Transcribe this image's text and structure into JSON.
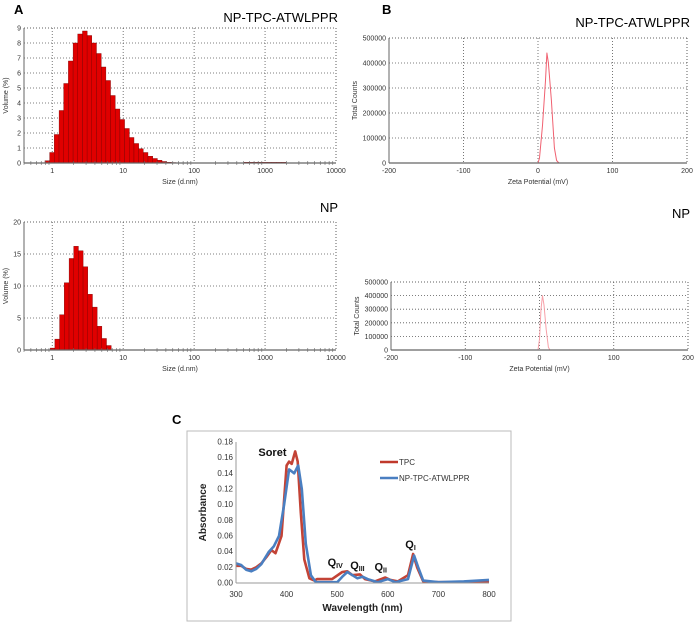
{
  "panel_letters": {
    "a": "A",
    "b": "B",
    "c": "C"
  },
  "chart_data": [
    {
      "id": "A-top",
      "type": "bar",
      "title": "NP-TPC-ATWLPPR",
      "xlabel": "Size (d.nm)",
      "ylabel": "Volume (%)",
      "xscale": "log",
      "xlim": [
        0.4,
        10000
      ],
      "ylim": [
        0,
        9
      ],
      "xticks": [
        "1",
        "10",
        "100",
        "1000",
        "10000"
      ],
      "xtick_values": [
        1,
        10,
        100,
        1000,
        10000
      ],
      "yticks": [
        0,
        1,
        2,
        3,
        4,
        5,
        6,
        7,
        8,
        9
      ],
      "grid": true,
      "color": "#e00000",
      "bin_factor": 1.164,
      "sizes": [
        0.79,
        0.92,
        1.07,
        1.25,
        1.45,
        1.69,
        1.97,
        2.29,
        2.67,
        3.1,
        3.61,
        4.21,
        4.9,
        5.7,
        6.63,
        7.72,
        8.99,
        10.5,
        12.2,
        14.2,
        16.5,
        19.2,
        22.4,
        26.1,
        30.3,
        35.3,
        41.1,
        47.8,
        500,
        582,
        678,
        789,
        918,
        1069,
        1244,
        1448,
        1686
      ],
      "values": [
        0.15,
        0.7,
        1.9,
        3.5,
        5.3,
        6.8,
        8.0,
        8.6,
        8.8,
        8.5,
        8.0,
        7.3,
        6.4,
        5.5,
        4.5,
        3.6,
        2.9,
        2.3,
        1.7,
        1.3,
        0.95,
        0.7,
        0.45,
        0.3,
        0.18,
        0.1,
        0.05,
        0.03,
        0.05,
        0.05,
        0.05,
        0.05,
        0.05,
        0.05,
        0.05,
        0.05,
        0.05
      ]
    },
    {
      "id": "A-bottom",
      "type": "bar",
      "title": "NP",
      "xlabel": "Size (d.nm)",
      "ylabel": "Volume (%)",
      "xscale": "log",
      "xlim": [
        0.4,
        10000
      ],
      "ylim": [
        0,
        20
      ],
      "xticks": [
        "1",
        "10",
        "100",
        "1000",
        "10000"
      ],
      "xtick_values": [
        1,
        10,
        100,
        1000,
        10000
      ],
      "yticks": [
        0,
        5,
        10,
        15,
        20
      ],
      "grid": true,
      "color": "#e00000",
      "bin_factor": 1.164,
      "sizes": [
        0.94,
        1.09,
        1.27,
        1.48,
        1.73,
        2.01,
        2.34,
        2.72,
        3.17,
        3.69,
        4.3,
        5.0,
        5.82
      ],
      "values": [
        0.3,
        1.7,
        5.5,
        10.5,
        14.3,
        16.2,
        15.5,
        13.0,
        8.7,
        6.7,
        3.7,
        1.8,
        0.7
      ]
    },
    {
      "id": "B-top",
      "type": "line",
      "title": "NP-TPC-ATWLPPR",
      "xlabel": "Zeta Potential (mV)",
      "ylabel": "Total Counts",
      "xlim": [
        -200,
        200
      ],
      "ylim": [
        0,
        500000
      ],
      "xticks": [
        "-200",
        "-100",
        "0",
        "100",
        "200"
      ],
      "xtick_values": [
        -200,
        -100,
        0,
        100,
        200
      ],
      "yticks": [
        0,
        100000,
        200000,
        300000,
        400000,
        500000
      ],
      "grid": true,
      "color": "#f06070",
      "x": [
        -200,
        0,
        2,
        6,
        10,
        12,
        14,
        18,
        22,
        25,
        28,
        200
      ],
      "y": [
        0,
        0,
        20000,
        150000,
        330000,
        440000,
        400000,
        250000,
        60000,
        10000,
        0,
        0
      ]
    },
    {
      "id": "B-bottom",
      "type": "line",
      "title": "NP",
      "xlabel": "Zeta Potential (mV)",
      "ylabel": "Total Counts",
      "xlim": [
        -200,
        200
      ],
      "ylim": [
        0,
        500000
      ],
      "xticks": [
        "-200",
        "-100",
        "0",
        "100",
        "200"
      ],
      "xtick_values": [
        -200,
        -100,
        0,
        100,
        200
      ],
      "yticks": [
        0,
        100000,
        200000,
        300000,
        400000,
        500000
      ],
      "grid": true,
      "color": "#f7a0a8",
      "x": [
        -200,
        -2,
        0,
        2,
        4,
        6,
        9,
        12,
        14,
        200
      ],
      "y": [
        0,
        0,
        80000,
        300000,
        400000,
        330000,
        150000,
        20000,
        0,
        0
      ]
    },
    {
      "id": "C",
      "type": "line",
      "xlabel": "Wavelength (nm)",
      "ylabel": "Absorbance",
      "xlim": [
        300,
        800
      ],
      "ylim": [
        0,
        0.18
      ],
      "xticks": [
        "300",
        "400",
        "500",
        "600",
        "700",
        "800"
      ],
      "xtick_values": [
        300,
        400,
        500,
        600,
        700,
        800
      ],
      "yticks": [
        "0.00",
        "0.02",
        "0.04",
        "0.06",
        "0.08",
        "0.10",
        "0.12",
        "0.14",
        "0.16",
        "0.18"
      ],
      "grid": false,
      "legend": "top-right",
      "series": [
        {
          "name": "TPC",
          "color": "#c0392b",
          "x": [
            300,
            310,
            320,
            330,
            340,
            350,
            360,
            370,
            378,
            390,
            400,
            405,
            410,
            417,
            422,
            428,
            435,
            445,
            455,
            460,
            490,
            510,
            520,
            530,
            545,
            555,
            575,
            595,
            605,
            620,
            640,
            650,
            658,
            670,
            700,
            800
          ],
          "y": [
            0.022,
            0.022,
            0.018,
            0.017,
            0.02,
            0.025,
            0.033,
            0.042,
            0.038,
            0.06,
            0.15,
            0.155,
            0.152,
            0.168,
            0.155,
            0.09,
            0.03,
            0.006,
            0.003,
            0.005,
            0.005,
            0.014,
            0.015,
            0.01,
            0.011,
            0.005,
            0.002,
            0.007,
            0.004,
            0.002,
            0.01,
            0.037,
            0.02,
            0.002,
            0.001,
            0.001
          ]
        },
        {
          "name": "NP-TPC-ATWLPPR",
          "color": "#4a7fc1",
          "x": [
            300,
            310,
            320,
            330,
            340,
            350,
            365,
            375,
            385,
            395,
            405,
            415,
            423,
            430,
            438,
            448,
            458,
            500,
            510,
            520,
            530,
            540,
            550,
            560,
            580,
            600,
            615,
            640,
            652,
            660,
            670,
            700,
            750,
            800
          ],
          "y": [
            0.025,
            0.023,
            0.017,
            0.015,
            0.018,
            0.024,
            0.04,
            0.047,
            0.06,
            0.1,
            0.145,
            0.14,
            0.15,
            0.12,
            0.05,
            0.01,
            0.001,
            0.001,
            0.008,
            0.014,
            0.01,
            0.006,
            0.008,
            0.005,
            0.001,
            0.005,
            0.001,
            0.005,
            0.035,
            0.02,
            0.003,
            0.001,
            0.002,
            0.004
          ]
        }
      ],
      "annotations": [
        {
          "text": "Soret",
          "sub": "",
          "x": 372,
          "y": 0.162
        },
        {
          "text": "Q",
          "sub": "IV",
          "x": 496,
          "y": 0.022
        },
        {
          "text": "Q",
          "sub": "III",
          "x": 540,
          "y": 0.018
        },
        {
          "text": "Q",
          "sub": "II",
          "x": 586,
          "y": 0.016
        },
        {
          "text": "Q",
          "sub": "I",
          "x": 645,
          "y": 0.045
        }
      ]
    }
  ]
}
